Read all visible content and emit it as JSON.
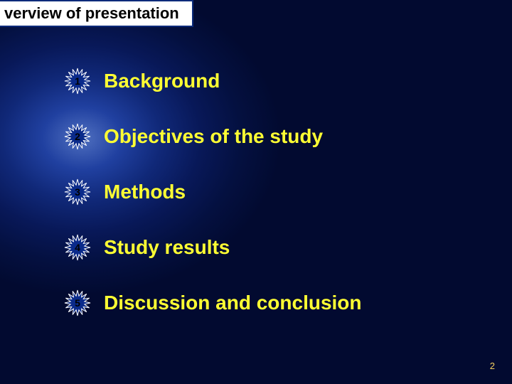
{
  "slide": {
    "title": "verview of presentation",
    "title_box": {
      "border_color": "#0a2a7a",
      "bg_color": "#ffffff",
      "text_color": "#000000"
    },
    "background": {
      "gradient_inner": "#5070c0",
      "gradient_outer": "#020a30"
    },
    "bullet_star": {
      "fill": "#0a2a8a",
      "stroke": "#ffffff",
      "number_color": "#000000"
    },
    "items": [
      {
        "num": "1",
        "label": "Background"
      },
      {
        "num": "2",
        "label": "Objectives of the study"
      },
      {
        "num": "3",
        "label": "Methods"
      },
      {
        "num": "4",
        "label": "Study results"
      },
      {
        "num": "5",
        "label": "Discussion and conclusion"
      }
    ],
    "item_label_color": "#ffff33",
    "item_label_fontsize": 28,
    "page_number": "2",
    "page_number_color": "#f4d060"
  }
}
